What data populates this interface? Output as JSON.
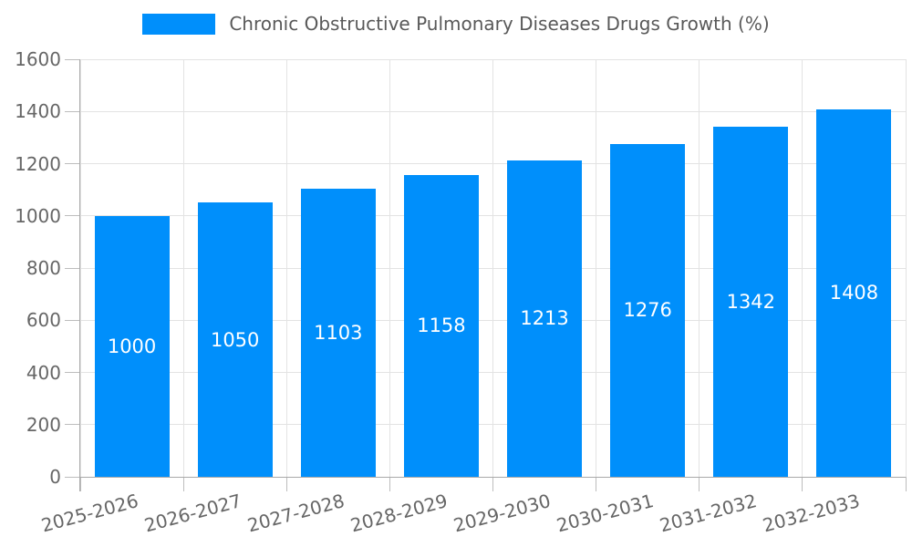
{
  "chart_data": {
    "type": "bar",
    "title": "Chronic Obstructive Pulmonary Diseases Drugs Growth (%)",
    "categories": [
      "2025-2026",
      "2026-2027",
      "2027-2028",
      "2028-2029",
      "2029-2030",
      "2030-2031",
      "2031-2032",
      "2032-2033"
    ],
    "series": [
      {
        "name": "Chronic Obstructive Pulmonary Diseases Drugs Growth (%)",
        "color": "#008FFB",
        "values": [
          1000,
          1050,
          1103,
          1158,
          1213,
          1276,
          1342,
          1408
        ]
      }
    ],
    "xlabel": "",
    "ylabel": "",
    "ylim": [
      0,
      1600
    ],
    "ytick_step": 200,
    "yticks": [
      0,
      200,
      400,
      600,
      800,
      1000,
      1200,
      1400,
      1600
    ],
    "grid": true,
    "legend_position": "top",
    "bar_label_placement": "inside-middle",
    "colors": {
      "bar": "#008FFB",
      "grid_line": "#e3e3e3",
      "axis_line": "#a9a9a9",
      "tick_mark": "#bdbdbd",
      "axis_text": "#666666",
      "legend_text": "#595959",
      "bar_value_text": "#ffffff",
      "background": "#ffffff"
    }
  }
}
